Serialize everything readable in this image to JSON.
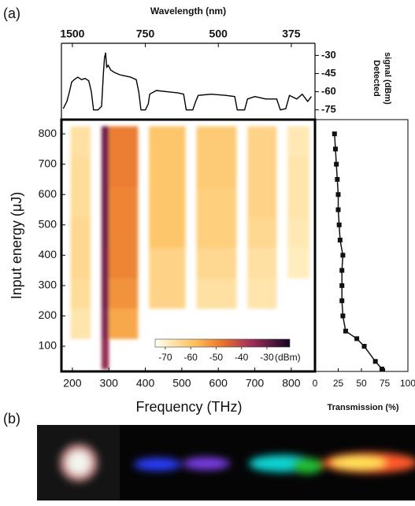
{
  "panel_labels": [
    "(a)",
    "(b)"
  ],
  "chart_data": [
    {
      "type": "line",
      "x_label": "Wavelength (nm)",
      "xlim": [
        170,
        865
      ],
      "xticks": [
        {
          "value": 200,
          "label": "1500"
        },
        {
          "value": 400,
          "label": "750"
        },
        {
          "value": 600,
          "label": "500"
        },
        {
          "value": 800,
          "label": "375"
        }
      ],
      "y_label": [
        "Detected",
        "signal (dBm)"
      ],
      "ylim": [
        -83,
        -20
      ],
      "yticks": [
        -30,
        -45,
        -60,
        -75
      ],
      "x": [
        175,
        185,
        192,
        198,
        205,
        215,
        225,
        235,
        245,
        252,
        258,
        270,
        280,
        285,
        288,
        291,
        294,
        298,
        305,
        315,
        330,
        345,
        360,
        375,
        382,
        388,
        400,
        408,
        412,
        430,
        460,
        490,
        505,
        512,
        530,
        538,
        545,
        580,
        620,
        645,
        652,
        672,
        680,
        700,
        730,
        760,
        770,
        785,
        795,
        815,
        830,
        845,
        855
      ],
      "series": [
        {
          "color": "#000000",
          "values": [
            -74,
            -68,
            -60,
            -52,
            -50,
            -48,
            -50,
            -49,
            -51,
            -60,
            -75,
            -75,
            -72,
            -45,
            -32,
            -28,
            -40,
            -38,
            -42,
            -44,
            -46,
            -47,
            -48,
            -50,
            -60,
            -75,
            -75,
            -70,
            -62,
            -59,
            -60,
            -61,
            -62,
            -75,
            -75,
            -68,
            -63,
            -62,
            -63,
            -64,
            -75,
            -75,
            -66,
            -64,
            -66,
            -66,
            -75,
            -74,
            -63,
            -66,
            -62,
            -68,
            -64
          ]
        }
      ]
    },
    {
      "type": "heatmap",
      "x_label": "Frequency (THz)",
      "y_label": "Input energy (μJ)",
      "xlim": [
        170,
        865
      ],
      "ylim": [
        17,
        847
      ],
      "xticks": [
        200,
        300,
        400,
        500,
        600,
        700,
        800
      ],
      "yticks": [
        100,
        200,
        300,
        400,
        500,
        600,
        700,
        800
      ],
      "xbins": [
        195,
        250,
        280,
        300,
        380,
        410,
        510,
        540,
        650,
        680,
        760,
        790,
        850
      ],
      "ybins": [
        25,
        125,
        225,
        325,
        425,
        525,
        625,
        725,
        825
      ],
      "z": [
        [
          null,
          null,
          -35,
          null,
          null,
          null,
          null,
          null,
          null,
          null,
          null,
          null
        ],
        [
          -67,
          null,
          -33,
          -55,
          null,
          null,
          null,
          null,
          null,
          null,
          null,
          null
        ],
        [
          -65,
          null,
          -32,
          -52,
          null,
          -63,
          null,
          -66,
          null,
          -67,
          null,
          null
        ],
        [
          -64,
          null,
          -32,
          -50,
          null,
          -63,
          null,
          -64,
          null,
          -66,
          null,
          -69
        ],
        [
          -64,
          null,
          -31,
          -50,
          null,
          -60,
          null,
          -62,
          null,
          -64,
          null,
          -68
        ],
        [
          -65,
          null,
          -31,
          -50,
          null,
          -60,
          null,
          -62,
          null,
          -63,
          null,
          -67
        ],
        [
          -65,
          null,
          -31,
          -49,
          null,
          -60,
          null,
          -61,
          null,
          -63,
          null,
          -67
        ],
        [
          -66,
          null,
          -31,
          -49,
          null,
          -60,
          null,
          -61,
          null,
          -63,
          null,
          -68
        ]
      ],
      "colorbar": {
        "label": "(dBm)",
        "clim": [
          -74,
          -21
        ],
        "ticks": [
          -70,
          -60,
          -50,
          -40,
          -30
        ]
      }
    },
    {
      "type": "line",
      "x_label": "Transmission (%)",
      "xlim": [
        0,
        100
      ],
      "xticks": [
        0,
        25,
        50,
        75,
        100
      ],
      "ylim": [
        17,
        847
      ],
      "y": [
        25,
        50,
        100,
        125,
        150,
        200,
        250,
        300,
        350,
        400,
        450,
        500,
        550,
        600,
        650,
        700,
        750,
        800
      ],
      "values": [
        72,
        65,
        53,
        45,
        33,
        30,
        29,
        29,
        29,
        30,
        27,
        26,
        25,
        25,
        24,
        23,
        22,
        21
      ],
      "color": "#111111",
      "marker": "square"
    }
  ]
}
